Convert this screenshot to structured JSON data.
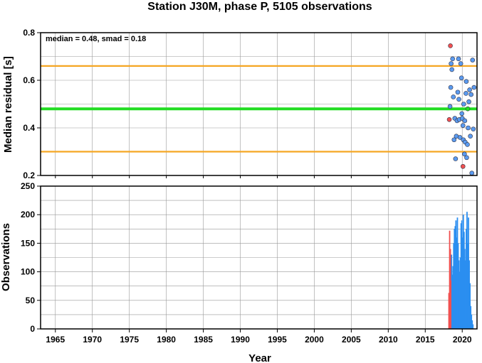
{
  "title": "Station J30M, phase P, 5105 observations",
  "chart_data": [
    {
      "type": "scatter",
      "ylabel": "Median residual [s]",
      "annotation": "median = 0.48, smad = 0.18",
      "xlim": [
        1963,
        2022
      ],
      "ylim": [
        0.2,
        0.8
      ],
      "yticks": [
        "0.2",
        "0.4",
        "0.6",
        "0.8"
      ],
      "grid": true,
      "reference_lines": [
        {
          "y": 0.48,
          "color": "#22dd22"
        },
        {
          "y": 0.66,
          "color": "#f5a623"
        },
        {
          "y": 0.3,
          "color": "#f5a623"
        }
      ],
      "series": [
        {
          "color": "#5b9bf0",
          "points": [
            [
              2018.45,
              0.57
            ],
            [
              2018.5,
              0.67
            ],
            [
              2018.6,
              0.645
            ],
            [
              2018.7,
              0.69
            ],
            [
              2018.8,
              0.53
            ],
            [
              2018.9,
              0.35
            ],
            [
              2019.0,
              0.44
            ],
            [
              2019.1,
              0.27
            ],
            [
              2019.2,
              0.365
            ],
            [
              2019.3,
              0.43
            ],
            [
              2019.4,
              0.55
            ],
            [
              2019.5,
              0.69
            ],
            [
              2019.55,
              0.52
            ],
            [
              2019.6,
              0.435
            ],
            [
              2019.7,
              0.36
            ],
            [
              2019.8,
              0.67
            ],
            [
              2019.9,
              0.61
            ],
            [
              2019.95,
              0.46
            ],
            [
              2020.0,
              0.44
            ],
            [
              2020.1,
              0.41
            ],
            [
              2020.15,
              0.35
            ],
            [
              2020.2,
              0.5
            ],
            [
              2020.3,
              0.29
            ],
            [
              2020.35,
              0.43
            ],
            [
              2020.4,
              0.34
            ],
            [
              2020.5,
              0.545
            ],
            [
              2020.55,
              0.595
            ],
            [
              2020.6,
              0.275
            ],
            [
              2020.7,
              0.33
            ],
            [
              2020.8,
              0.4
            ],
            [
              2020.9,
              0.51
            ],
            [
              2021.0,
              0.56
            ],
            [
              2021.1,
              0.365
            ],
            [
              2021.2,
              0.54
            ],
            [
              2021.3,
              0.21
            ],
            [
              2021.4,
              0.685
            ],
            [
              2021.5,
              0.395
            ],
            [
              2021.6,
              0.57
            ],
            [
              2018.35,
              0.49
            ]
          ]
        },
        {
          "color": "#22dd22",
          "points": [
            [
              2020.75,
              0.48
            ]
          ]
        },
        {
          "color": "#f05050",
          "points": [
            [
              2018.25,
              0.435
            ],
            [
              2018.4,
              0.745
            ],
            [
              2020.1,
              0.238
            ]
          ]
        }
      ]
    },
    {
      "type": "bar",
      "ylabel": "Observations",
      "xlabel": "Year",
      "xlim": [
        1963,
        2022
      ],
      "ylim": [
        0,
        250
      ],
      "yticks": [
        "0",
        "50",
        "100",
        "150",
        "200",
        "250"
      ],
      "xticks": [
        "1965",
        "1970",
        "1975",
        "1980",
        "1985",
        "1990",
        "1995",
        "2000",
        "2005",
        "2010",
        "2015",
        "2020"
      ],
      "grid": true,
      "series": [
        {
          "color": "#2b8ef0",
          "bars": [
            [
              2018.55,
              130
            ],
            [
              2018.65,
              95
            ],
            [
              2018.75,
              110
            ],
            [
              2018.85,
              150
            ],
            [
              2018.95,
              175
            ],
            [
              2019.05,
              180
            ],
            [
              2019.15,
              190
            ],
            [
              2019.25,
              160
            ],
            [
              2019.35,
              195
            ],
            [
              2019.45,
              150
            ],
            [
              2019.55,
              120
            ],
            [
              2019.65,
              100
            ],
            [
              2019.75,
              125
            ],
            [
              2019.85,
              185
            ],
            [
              2019.95,
              190
            ],
            [
              2020.05,
              160
            ],
            [
              2020.15,
              200
            ],
            [
              2020.25,
              170
            ],
            [
              2020.35,
              140
            ],
            [
              2020.45,
              120
            ],
            [
              2020.55,
              175
            ],
            [
              2020.65,
              205
            ],
            [
              2020.75,
              150
            ],
            [
              2020.85,
              195
            ],
            [
              2020.95,
              120
            ],
            [
              2021.05,
              80
            ],
            [
              2021.15,
              40
            ],
            [
              2021.25,
              25
            ],
            [
              2021.35,
              15
            ],
            [
              2021.45,
              8
            ]
          ]
        },
        {
          "color": "#f05050",
          "bars": [
            [
              2018.2,
              63
            ],
            [
              2018.3,
              172
            ],
            [
              2018.4,
              140
            ],
            [
              2018.45,
              85
            ]
          ]
        }
      ]
    }
  ]
}
